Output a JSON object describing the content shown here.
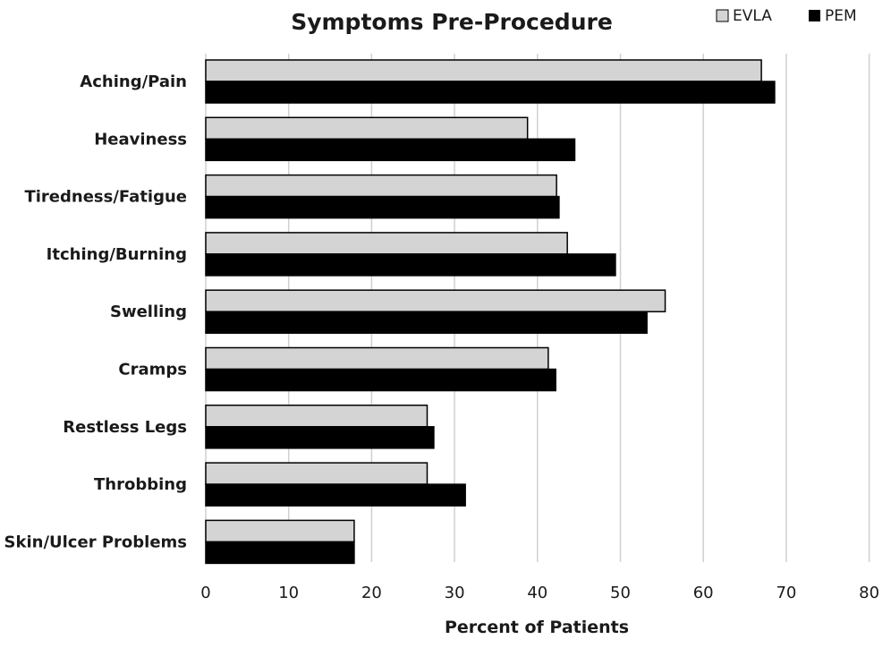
{
  "chart_data": {
    "type": "bar",
    "orientation": "horizontal",
    "title": "Symptoms Pre-Procedure",
    "xlabel": "Percent of Patients",
    "ylabel": "",
    "xlim": [
      0,
      80
    ],
    "x_ticks": [
      0,
      10,
      20,
      30,
      40,
      50,
      60,
      70,
      80
    ],
    "grid": true,
    "legend_position": "top-right",
    "categories": [
      "Aching/Pain",
      "Heaviness",
      "Tiredness/Fatigue",
      "Itching/Burning",
      "Swelling",
      "Cramps",
      "Restless Legs",
      "Throbbing",
      "Skin/Ulcer Problems"
    ],
    "series": [
      {
        "name": "EVLA",
        "color": "#d4d4d4",
        "values": [
          67.0,
          38.8,
          42.3,
          43.6,
          55.4,
          41.3,
          26.7,
          26.7,
          17.9
        ]
      },
      {
        "name": "PEM",
        "color": "#000000",
        "values": [
          68.6,
          44.5,
          42.6,
          49.4,
          53.2,
          42.2,
          27.5,
          31.3,
          17.9
        ]
      }
    ]
  }
}
